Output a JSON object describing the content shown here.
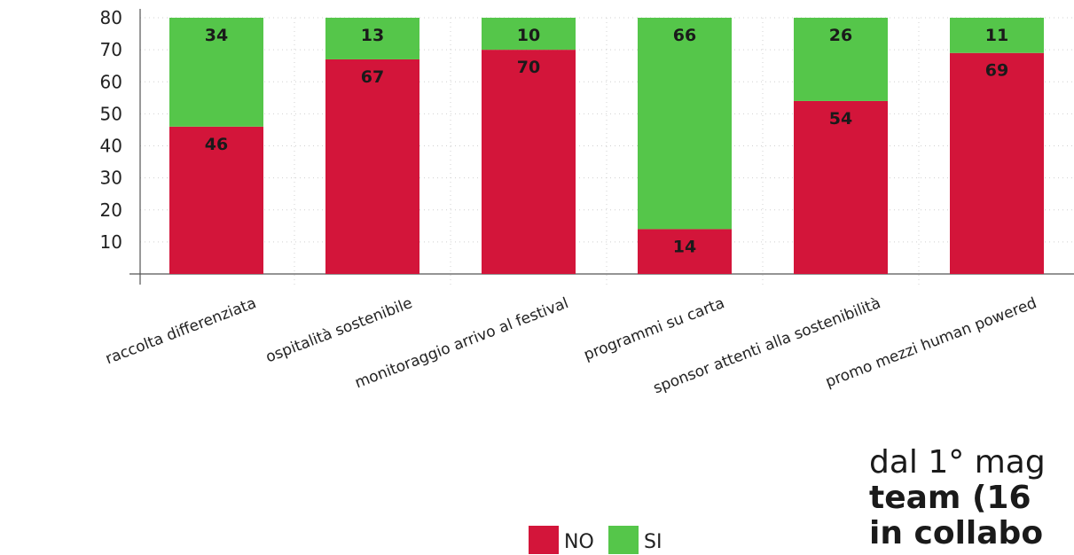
{
  "chart_data": {
    "type": "bar",
    "stacked": true,
    "categories": [
      "raccolta differenziata",
      "ospitalità sostenibile",
      "monitoraggio arrivo al festival",
      "programmi su carta",
      "sponsor attenti alla sostenibilità",
      "promo mezzi human powered"
    ],
    "series": [
      {
        "name": "NO",
        "color": "#d3153a",
        "values": [
          46,
          67,
          70,
          14,
          54,
          69
        ]
      },
      {
        "name": "SI",
        "color": "#55c64a",
        "values": [
          34,
          13,
          10,
          66,
          26,
          11
        ]
      }
    ],
    "yticks": [
      "10",
      "20",
      "30",
      "40",
      "50",
      "60",
      "70",
      "80"
    ],
    "ylim": [
      0,
      80
    ],
    "grid": "dotted",
    "legend_position": "bottom-center"
  },
  "side_text": {
    "line1": "dal 1° mag",
    "line2": "team (16",
    "line3": "in collabo"
  }
}
